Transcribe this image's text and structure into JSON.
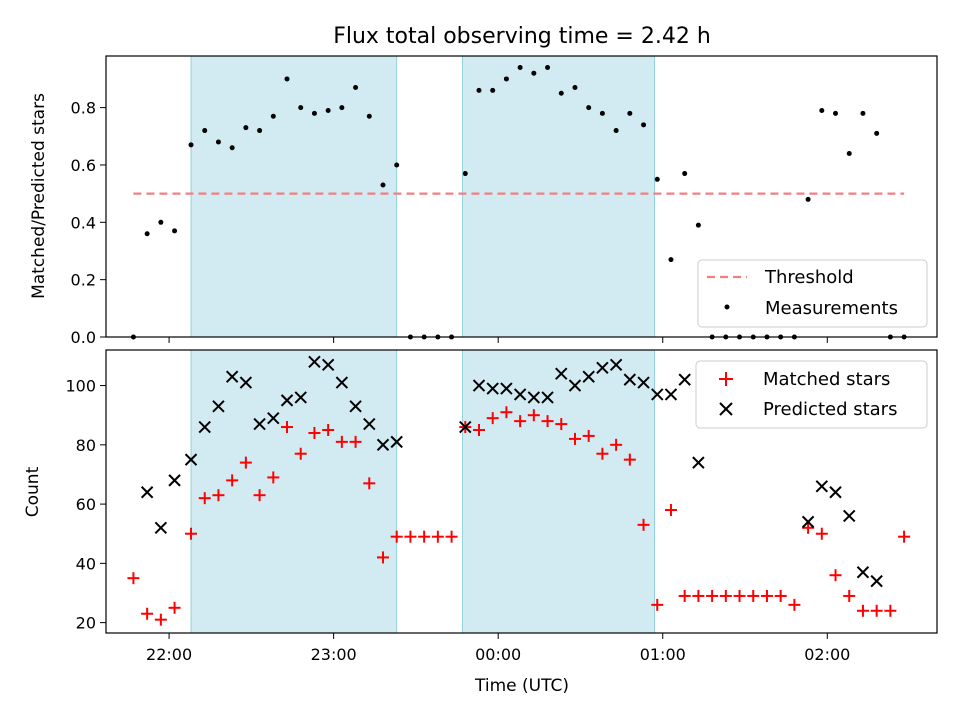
{
  "title": "Flux total observing time = 2.42 h",
  "xlabel": "Time (UTC)",
  "x_ticks": [
    "22:00",
    "23:00",
    "00:00",
    "01:00",
    "02:00"
  ],
  "colors": {
    "threshold": "#f08080",
    "measurement": "#000000",
    "matched": "#ff0000",
    "predicted": "#000000",
    "span": "#add8e6"
  },
  "chart_data": [
    {
      "type": "scatter",
      "ylabel": "Matched/Predicted stars",
      "ylim": [
        0,
        0.98
      ],
      "yticks": [
        "0.0",
        "0.2",
        "0.4",
        "0.6",
        "0.8"
      ],
      "xlim": [
        "21:37",
        "02:40"
      ],
      "shaded_spans": [
        [
          "22:08",
          "23:23"
        ],
        [
          "23:47",
          "00:57"
        ]
      ],
      "legend_position": "lower right",
      "legend": [
        "Threshold",
        "Measurements"
      ],
      "threshold": {
        "value": 0.5,
        "x_range": [
          "21:47",
          "02:28"
        ]
      },
      "series": [
        {
          "name": "Measurements",
          "x": [
            "21:47",
            "21:52",
            "21:57",
            "22:02",
            "22:08",
            "22:13",
            "22:18",
            "22:23",
            "22:28",
            "22:33",
            "22:38",
            "22:43",
            "22:48",
            "22:53",
            "22:58",
            "23:03",
            "23:08",
            "23:13",
            "23:18",
            "23:23",
            "23:28",
            "23:33",
            "23:38",
            "23:43",
            "23:48",
            "23:53",
            "23:58",
            "00:03",
            "00:08",
            "00:13",
            "00:18",
            "00:23",
            "00:28",
            "00:33",
            "00:38",
            "00:43",
            "00:48",
            "00:53",
            "00:58",
            "01:03",
            "01:08",
            "01:13",
            "01:18",
            "01:23",
            "01:28",
            "01:33",
            "01:38",
            "01:43",
            "01:48",
            "01:53",
            "01:58",
            "02:03",
            "02:08",
            "02:13",
            "02:18",
            "02:23",
            "02:28"
          ],
          "y": [
            0.0,
            0.36,
            0.4,
            0.37,
            0.67,
            0.72,
            0.68,
            0.66,
            0.73,
            0.72,
            0.77,
            0.9,
            0.8,
            0.78,
            0.79,
            0.8,
            0.87,
            0.77,
            0.53,
            0.6,
            0.0,
            0.0,
            0.0,
            0.0,
            0.57,
            0.86,
            0.86,
            0.9,
            0.94,
            0.92,
            0.94,
            0.85,
            0.87,
            0.8,
            0.78,
            0.72,
            0.78,
            0.74,
            0.55,
            0.27,
            0.57,
            0.39,
            0.0,
            0.0,
            0.0,
            0.0,
            0.0,
            0.0,
            0.0,
            0.48,
            0.79,
            0.78,
            0.64,
            0.78,
            0.71,
            0.0,
            0.0
          ]
        }
      ]
    },
    {
      "type": "scatter",
      "ylabel": "Count",
      "ylim": [
        16.5,
        112
      ],
      "yticks": [
        "20",
        "40",
        "60",
        "80",
        "100"
      ],
      "xlim": [
        "21:37",
        "02:40"
      ],
      "shaded_spans": [
        [
          "22:08",
          "23:23"
        ],
        [
          "23:47",
          "00:57"
        ]
      ],
      "legend_position": "upper right",
      "legend": [
        "Matched stars",
        "Predicted stars"
      ],
      "series": [
        {
          "name": "Matched stars",
          "x": [
            "21:47",
            "21:52",
            "21:57",
            "22:02",
            "22:08",
            "22:13",
            "22:18",
            "22:23",
            "22:28",
            "22:33",
            "22:38",
            "22:43",
            "22:48",
            "22:53",
            "22:58",
            "23:03",
            "23:08",
            "23:13",
            "23:18",
            "23:23",
            "23:28",
            "23:33",
            "23:38",
            "23:43",
            "23:48",
            "23:53",
            "23:58",
            "00:03",
            "00:08",
            "00:13",
            "00:18",
            "00:23",
            "00:28",
            "00:33",
            "00:38",
            "00:43",
            "00:48",
            "00:53",
            "00:58",
            "01:03",
            "01:08",
            "01:13",
            "01:18",
            "01:23",
            "01:28",
            "01:33",
            "01:38",
            "01:43",
            "01:48",
            "01:53",
            "01:58",
            "02:03",
            "02:08",
            "02:13",
            "02:18",
            "02:23",
            "02:28"
          ],
          "y": [
            35,
            23,
            21,
            25,
            50,
            62,
            63,
            68,
            74,
            63,
            69,
            86,
            77,
            84,
            85,
            81,
            81,
            67,
            42,
            49,
            49,
            49,
            49,
            49,
            86,
            85,
            89,
            91,
            88,
            90,
            88,
            87,
            82,
            83,
            77,
            80,
            75,
            53,
            26,
            58,
            29,
            29,
            29,
            29,
            29,
            29,
            29,
            29,
            26,
            52,
            50,
            36,
            29,
            24,
            24,
            24,
            49
          ]
        },
        {
          "name": "Predicted stars",
          "x": [
            "21:52",
            "21:57",
            "22:02",
            "22:08",
            "22:13",
            "22:18",
            "22:23",
            "22:28",
            "22:33",
            "22:38",
            "22:43",
            "22:48",
            "22:53",
            "22:58",
            "23:03",
            "23:08",
            "23:13",
            "23:18",
            "23:23",
            "23:48",
            "23:53",
            "23:58",
            "00:03",
            "00:08",
            "00:13",
            "00:18",
            "00:23",
            "00:28",
            "00:33",
            "00:38",
            "00:43",
            "00:48",
            "00:53",
            "00:58",
            "01:03",
            "01:08",
            "01:13",
            "01:53",
            "01:58",
            "02:03",
            "02:08",
            "02:13",
            "02:18"
          ],
          "y": [
            64,
            52,
            68,
            75,
            86,
            93,
            103,
            101,
            87,
            89,
            95,
            96,
            108,
            107,
            101,
            93,
            87,
            80,
            81,
            86,
            100,
            99,
            99,
            97,
            96,
            96,
            104,
            100,
            103,
            106,
            107,
            102,
            101,
            97,
            97,
            102,
            74,
            54,
            66,
            64,
            56,
            37,
            34
          ]
        }
      ]
    }
  ]
}
